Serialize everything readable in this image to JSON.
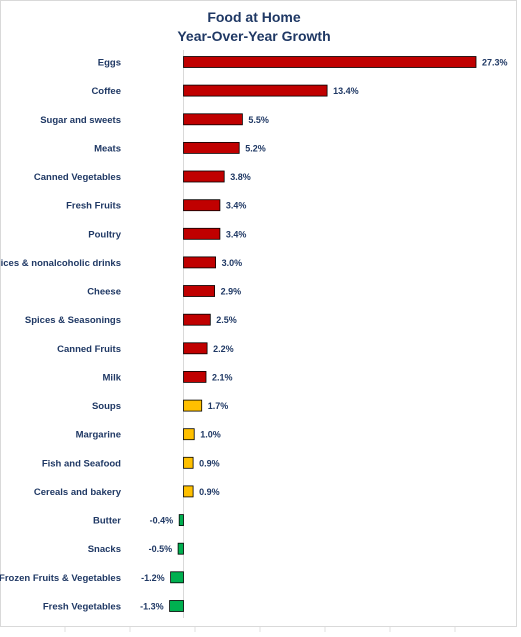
{
  "chart_data": {
    "type": "bar",
    "orientation": "horizontal",
    "title": "Food at Home",
    "subtitle": "Year-Over-Year Growth",
    "categories": [
      "Eggs",
      "Coffee",
      "Sugar and sweets",
      "Meats",
      "Canned Vegetables",
      "Fresh Fruits",
      "Poultry",
      "Juices & nonalcoholic drinks",
      "Cheese",
      "Spices & Seasonings",
      "Canned Fruits",
      "Milk",
      "Soups",
      "Margarine",
      "Fish and Seafood",
      "Cereals and bakery",
      "Butter",
      "Snacks",
      "Frozen Fruits & Vegetables",
      "Fresh Vegetables"
    ],
    "values": [
      27.3,
      13.4,
      5.5,
      5.2,
      3.8,
      3.4,
      3.4,
      3.0,
      2.9,
      2.5,
      2.2,
      2.1,
      1.7,
      1.0,
      0.9,
      0.9,
      -0.4,
      -0.5,
      -1.2,
      -1.3
    ],
    "value_labels": [
      "27.3%",
      "13.4%",
      "5.5%",
      "5.2%",
      "3.8%",
      "3.4%",
      "3.4%",
      "3.0%",
      "2.9%",
      "2.5%",
      "2.2%",
      "2.1%",
      "1.7%",
      "1.0%",
      "0.9%",
      "0.9%",
      "-0.4%",
      "-0.5%",
      "-1.2%",
      "-1.3%"
    ],
    "bar_colors": [
      "#c00000",
      "#c00000",
      "#c00000",
      "#c00000",
      "#c00000",
      "#c00000",
      "#c00000",
      "#c00000",
      "#c00000",
      "#c00000",
      "#c00000",
      "#c00000",
      "#ffc000",
      "#ffc000",
      "#ffc000",
      "#ffc000",
      "#00b050",
      "#00b050",
      "#00b050",
      "#00b050"
    ],
    "xlim": [
      -1.3,
      27.3
    ],
    "grid": false,
    "legend": "none",
    "colors": {
      "high": "#c00000",
      "moderate": "#ffc000",
      "negative": "#00b050",
      "text": "#1f3864",
      "bar_border": "#000000"
    }
  }
}
